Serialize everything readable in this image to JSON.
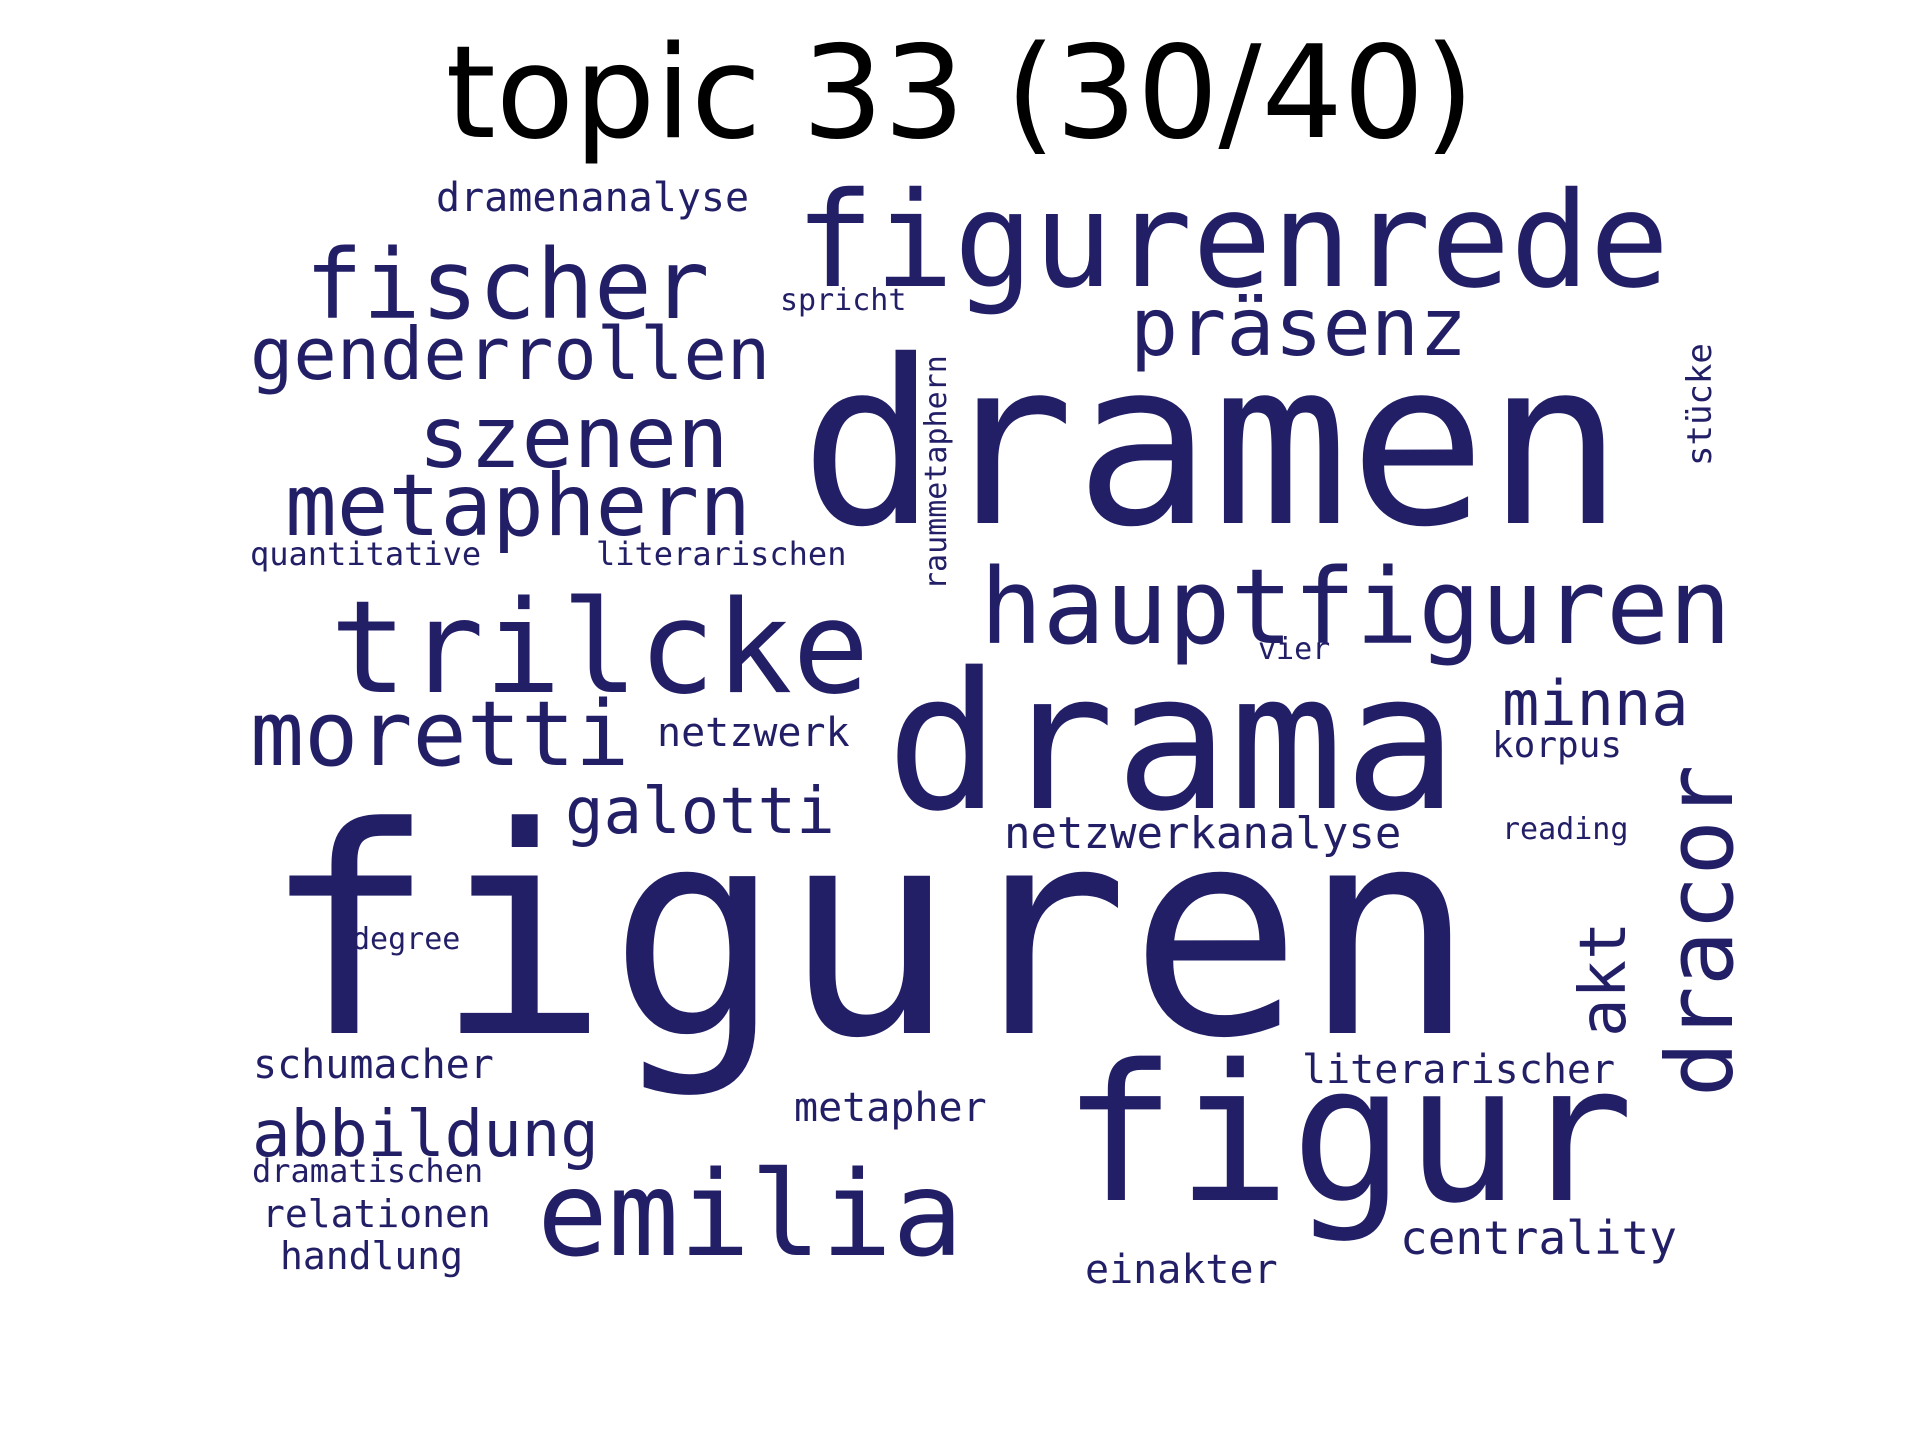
{
  "title": "topic 33 (30/40)",
  "color": "#221f67",
  "words": [
    {
      "id": "figuren",
      "text": "figuren"
    },
    {
      "id": "dramen",
      "text": "dramen"
    },
    {
      "id": "drama",
      "text": "drama"
    },
    {
      "id": "figur",
      "text": "figur"
    },
    {
      "id": "figurenrede",
      "text": "figurenrede"
    },
    {
      "id": "trilcke",
      "text": "trilcke"
    },
    {
      "id": "emilia",
      "text": "emilia"
    },
    {
      "id": "hauptfiguren",
      "text": "hauptfiguren"
    },
    {
      "id": "fischer",
      "text": "fischer"
    },
    {
      "id": "moretti",
      "text": "moretti"
    },
    {
      "id": "dracor",
      "text": "dracor"
    },
    {
      "id": "metaphern",
      "text": "metaphern"
    },
    {
      "id": "szenen",
      "text": "szenen"
    },
    {
      "id": "genderrollen",
      "text": "genderrollen"
    },
    {
      "id": "praesenz",
      "text": "präsenz"
    },
    {
      "id": "galotti",
      "text": "galotti"
    },
    {
      "id": "abbildung",
      "text": "abbildung"
    },
    {
      "id": "minna",
      "text": "minna"
    },
    {
      "id": "akt",
      "text": "akt"
    },
    {
      "id": "netzwerkanalyse",
      "text": "netzwerkanalyse"
    },
    {
      "id": "centrality",
      "text": "centrality"
    },
    {
      "id": "dramenanalyse",
      "text": "dramenanalyse"
    },
    {
      "id": "netzwerk",
      "text": "netzwerk"
    },
    {
      "id": "schumacher",
      "text": "schumacher"
    },
    {
      "id": "literarischer",
      "text": "literarischer"
    },
    {
      "id": "metapher",
      "text": "metapher"
    },
    {
      "id": "relationen",
      "text": "relationen"
    },
    {
      "id": "einakter",
      "text": "einakter"
    },
    {
      "id": "handlung",
      "text": "handlung"
    },
    {
      "id": "korpus",
      "text": "korpus"
    },
    {
      "id": "quantitative",
      "text": "quantitative"
    },
    {
      "id": "literarischen",
      "text": "literarischen"
    },
    {
      "id": "raummetaphern",
      "text": "raummetaphern"
    },
    {
      "id": "stuecke",
      "text": "stücke"
    },
    {
      "id": "spricht",
      "text": "spricht"
    },
    {
      "id": "dramatischen",
      "text": "dramatischen"
    },
    {
      "id": "degree",
      "text": "degree"
    },
    {
      "id": "reading",
      "text": "reading"
    },
    {
      "id": "vier",
      "text": "vier"
    }
  ]
}
